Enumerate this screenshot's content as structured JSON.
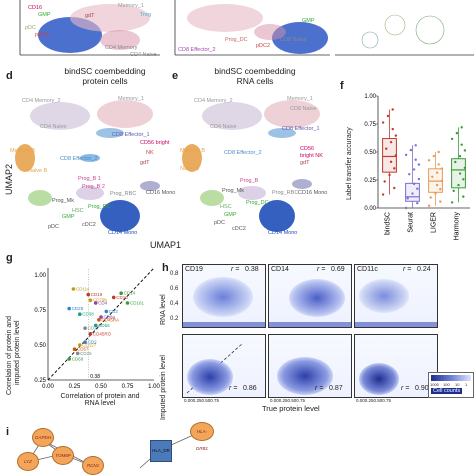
{
  "panels": {
    "top": {
      "cluster_labels": [
        "CD16",
        "GMP",
        "Memory_1",
        "Treg",
        "gdT",
        "pDC",
        "pDC2",
        "CD4 Memory",
        "CD4 Naive",
        "GMP",
        "CD8 Effector_2",
        "Prog_DC",
        "CD8 Naive",
        "pDC2"
      ]
    },
    "d": {
      "letter": "d",
      "title_line1": "bindSC coembedding",
      "title_line2": "protein cells",
      "labels": [
        "CD4 Memory_2",
        "Memory_1",
        "CD4 Naive",
        "CD8 Effector_1",
        "CD56 bright",
        "CD8 Effector_2",
        "NK",
        "Memory B",
        "gdT",
        "Naive B",
        "Prog_B 1",
        "Prog_B 2",
        "Prog_RBC",
        "Prog_Mk",
        "Prog_DC",
        "HSC",
        "CD16 Mono",
        "GMP",
        "pDC",
        "cDC2",
        "CD14 Mono"
      ]
    },
    "e": {
      "letter": "e",
      "title_line1": "bindSC coembedding",
      "title_line2": "RNA cells",
      "labels": [
        "CD4 Memory_2",
        "Memory_1",
        "CD4 Naive",
        "CD8 Naive",
        "CD8 Effector_1",
        "CD56",
        "bright NK",
        "CD8 Effector_2",
        "Memory B",
        "gdT",
        "Naive B",
        "Prog_B",
        "Prog_RBC",
        "Prog_Mk",
        "Prog_DC",
        "HSC",
        "CD16 Mono",
        "GMP",
        "pDC",
        "cDC2",
        "CD14 Mono"
      ]
    },
    "f": {
      "letter": "f",
      "ylabel": "Label transfer accuracy",
      "ticks": [
        "1.00",
        "0.75",
        "0.50",
        "0.25",
        "0.00"
      ]
    },
    "umap2_label": "UMAP2",
    "umap1_label": "UMAP1",
    "g": {
      "letter": "g",
      "ylabel_line1": "Correlation of protein and",
      "ylabel_line2": "imputed protein level",
      "xlabel_line1": "Correlation of protein and",
      "xlabel_line2": "RNA level",
      "yticks": [
        "1.00",
        "0.75",
        "0.50",
        "0.25"
      ],
      "xticks": [
        "0.00",
        "0.25",
        "0.50",
        "0.75",
        "1.00"
      ],
      "point_labels": [
        "CD11c",
        "CD19",
        "CD28",
        "CD4",
        "CD38",
        "CD45RA",
        "CD14",
        "CD27",
        "CD79b",
        "CD16",
        "CD161",
        "CD3",
        "CD8a",
        "CD56",
        "CD57",
        "CD25",
        "CD127",
        "CD45RO",
        "CD69",
        "CD2"
      ],
      "annot": "0.38"
    },
    "h": {
      "letter": "h",
      "top_ylabel": "RNA level",
      "bottom_ylabel": "Imputed protein level",
      "xlabel": "True protein level",
      "cols": [
        {
          "name": "CD19",
          "r_top": "0.38",
          "r_bottom": "0.86"
        },
        {
          "name": "CD14",
          "r_top": "0.69",
          "r_bottom": "0.87"
        },
        {
          "name": "CD11c",
          "r_top": "0.24",
          "r_bottom": "0.90"
        }
      ],
      "r_symbol": "r =",
      "yticks": [
        "0.8",
        "0.6",
        "0.4",
        "0.2"
      ],
      "xticks": [
        "0.000.250.500.75",
        "0.000.250.500.75",
        "0.000.250.500.75"
      ],
      "legend_title": "Cell counts",
      "legend_ticks": [
        "1000",
        "100",
        "10",
        "1"
      ]
    },
    "i": {
      "letter": "i",
      "genes": [
        "GAPDH",
        "LYZ",
        "TOM6P",
        "RCN1",
        "HLA-DRB1",
        "HLA_DR"
      ]
    }
  },
  "chart_data": [
    {
      "type": "scatter",
      "title": "",
      "xlabel": "Correlation of protein and RNA level",
      "ylabel": "Correlation of protein and imputed protein level",
      "xlim": [
        0,
        1
      ],
      "ylim": [
        0.25,
        1.05
      ],
      "points": [
        {
          "label": "CD11c",
          "x": 0.24,
          "y": 0.9
        },
        {
          "label": "CD19",
          "x": 0.38,
          "y": 0.86
        },
        {
          "label": "CD14",
          "x": 0.69,
          "y": 0.87
        },
        {
          "label": "CD28",
          "x": 0.2,
          "y": 0.76
        },
        {
          "label": "CD4",
          "x": 0.45,
          "y": 0.8
        },
        {
          "label": "CD38",
          "x": 0.3,
          "y": 0.72
        },
        {
          "label": "CD45RA",
          "x": 0.48,
          "y": 0.68
        },
        {
          "label": "CD27",
          "x": 0.35,
          "y": 0.62
        },
        {
          "label": "CD79b",
          "x": 0.4,
          "y": 0.82
        },
        {
          "label": "CD16",
          "x": 0.62,
          "y": 0.84
        },
        {
          "label": "CD161",
          "x": 0.75,
          "y": 0.8
        },
        {
          "label": "CD3",
          "x": 0.55,
          "y": 0.74
        },
        {
          "label": "CD8a",
          "x": 0.5,
          "y": 0.7
        },
        {
          "label": "CD56",
          "x": 0.45,
          "y": 0.64
        },
        {
          "label": "CD57",
          "x": 0.25,
          "y": 0.47
        },
        {
          "label": "CD25",
          "x": 0.28,
          "y": 0.44
        },
        {
          "label": "CD127",
          "x": 0.3,
          "y": 0.5
        },
        {
          "label": "CD45RO",
          "x": 0.4,
          "y": 0.58
        },
        {
          "label": "CD69",
          "x": 0.2,
          "y": 0.4
        },
        {
          "label": "CD2",
          "x": 0.35,
          "y": 0.52
        }
      ]
    },
    {
      "type": "box",
      "title": "",
      "ylabel": "Label transfer accuracy",
      "ylim": [
        0,
        1
      ],
      "categories": [
        "bindSC",
        "Seurat",
        "LIGER",
        "Harmony"
      ],
      "colors": [
        "#c0392b",
        "#7b6fd0",
        "#e89a55",
        "#3a9a3a"
      ],
      "boxes": [
        {
          "q1": 0.32,
          "median": 0.46,
          "q3": 0.62,
          "min": 0.12,
          "max": 0.88
        },
        {
          "q1": 0.06,
          "median": 0.1,
          "q3": 0.22,
          "min": 0.0,
          "max": 0.56
        },
        {
          "q1": 0.14,
          "median": 0.24,
          "q3": 0.35,
          "min": 0.02,
          "max": 0.5
        },
        {
          "q1": 0.18,
          "median": 0.34,
          "q3": 0.44,
          "min": 0.05,
          "max": 0.72
        }
      ]
    }
  ]
}
